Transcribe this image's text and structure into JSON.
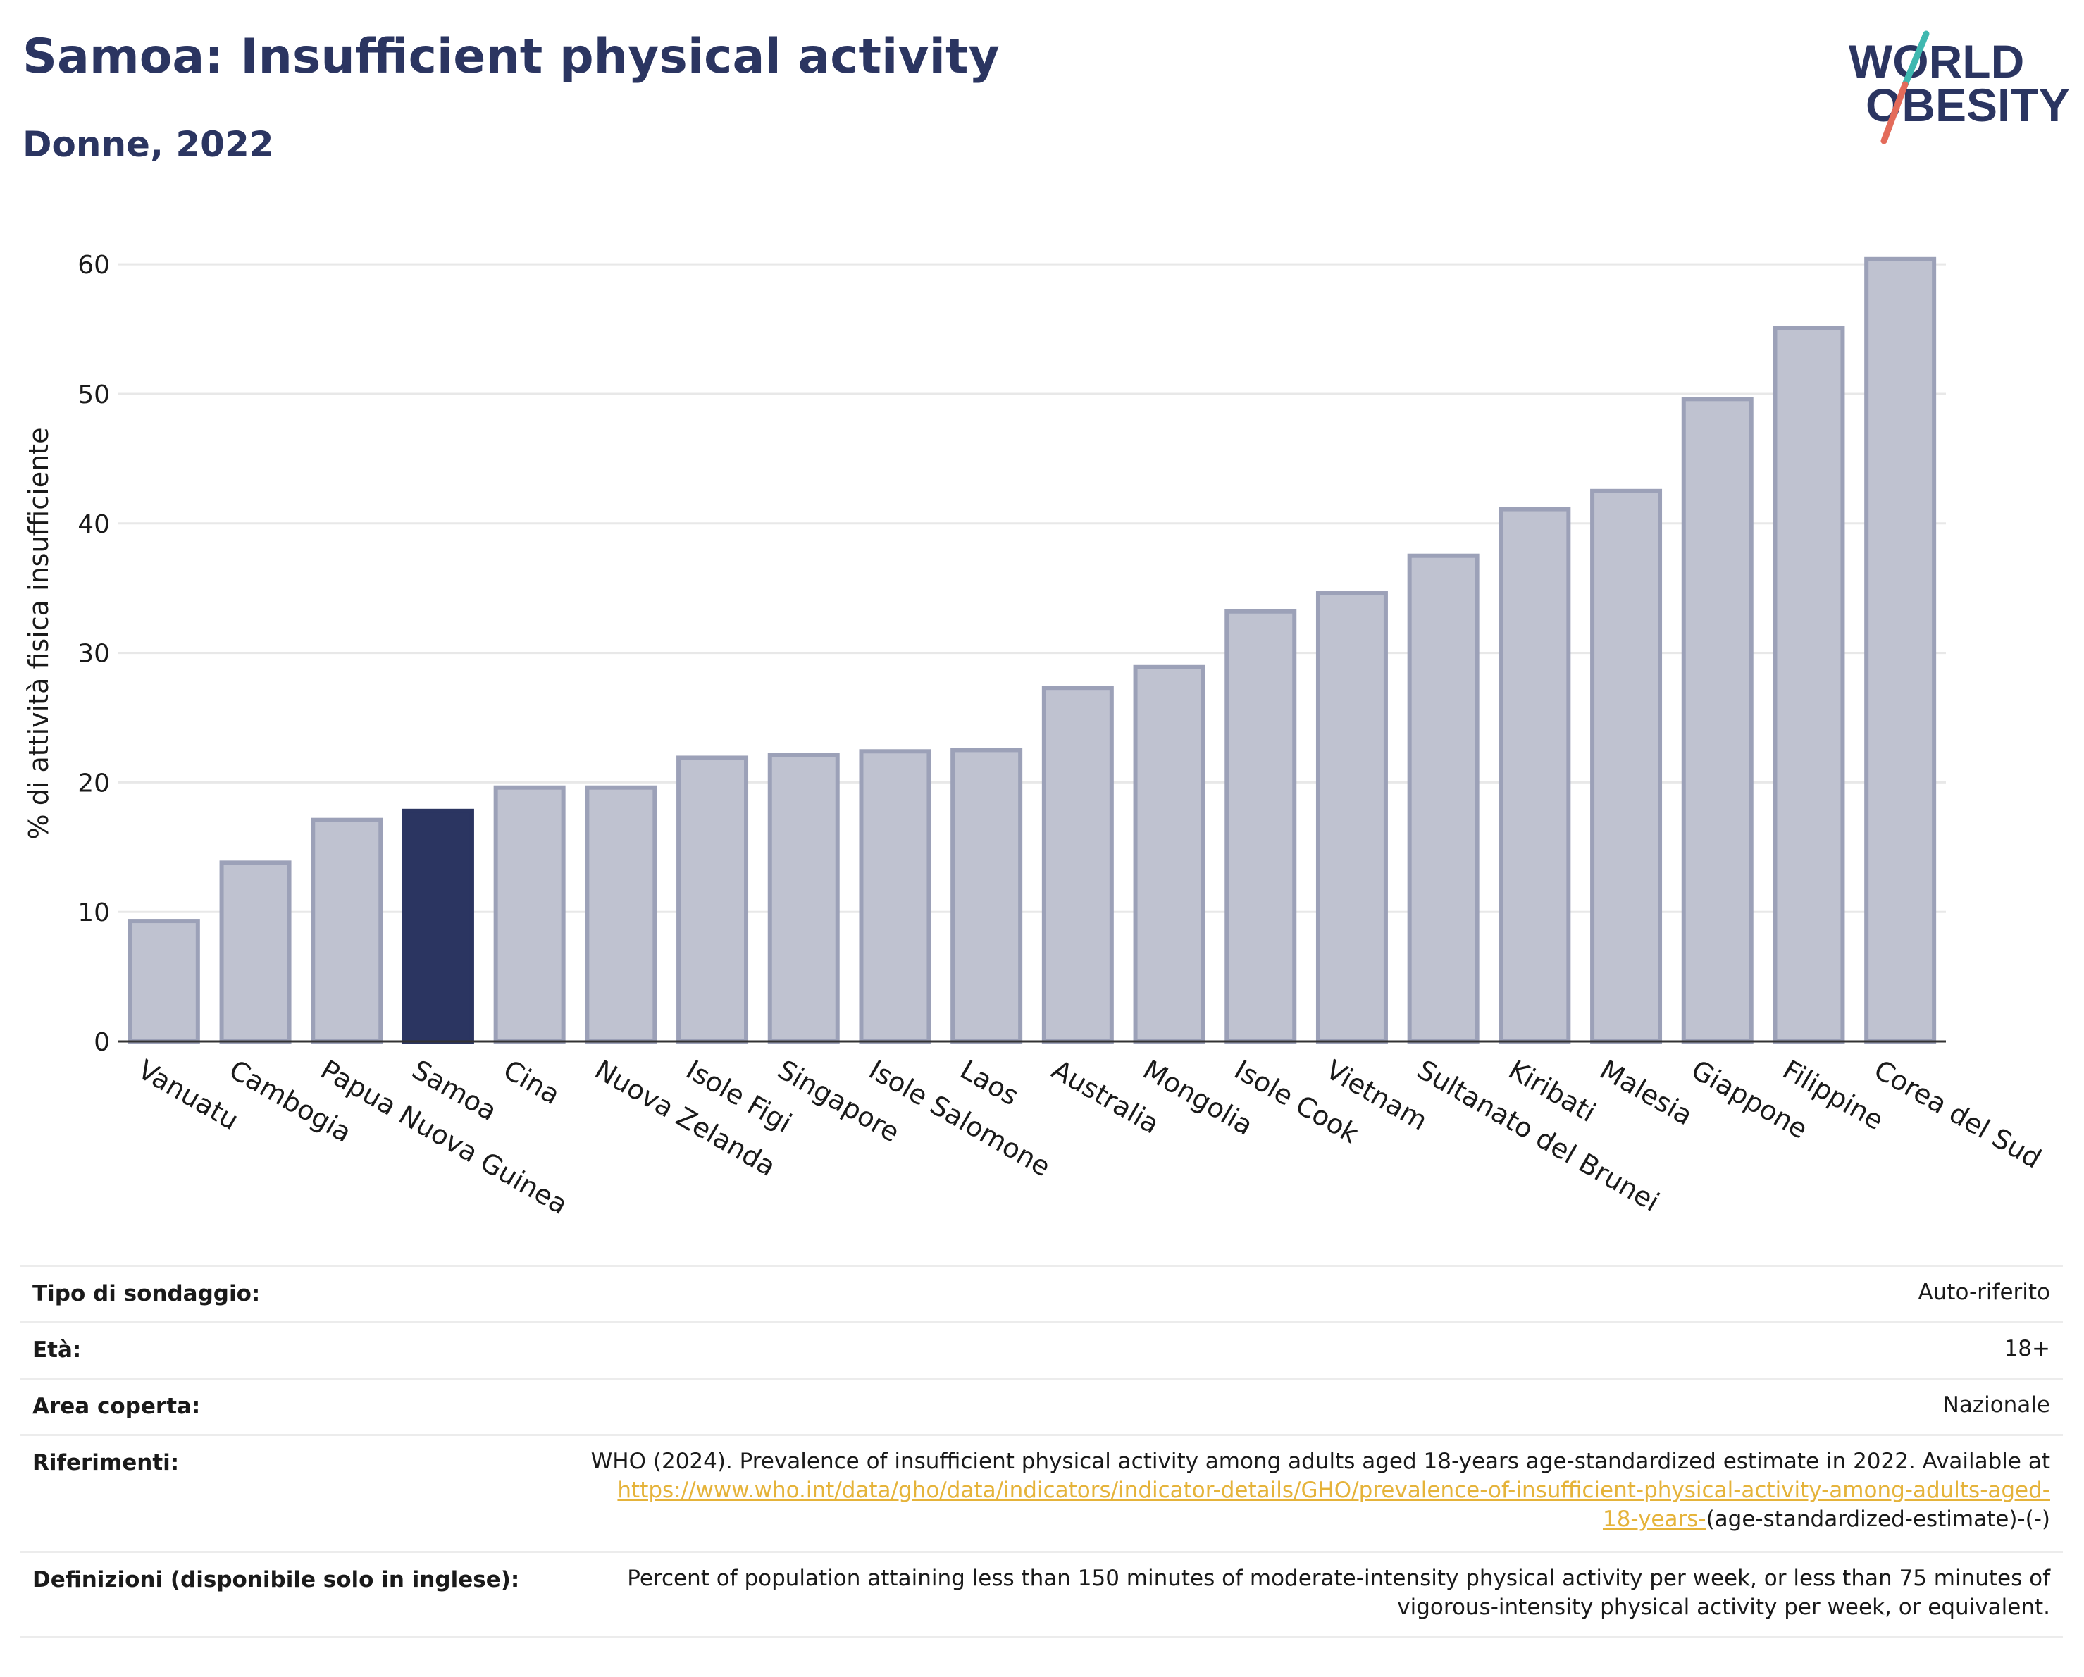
{
  "header": {
    "title": "Samoa: Insufficient physical activity",
    "subtitle": "Donne, 2022"
  },
  "logo": {
    "line1": "WORLD",
    "line2": "OBESITY",
    "text_color": "#2b3561",
    "slash_teal": "#3fb8b0",
    "slash_coral": "#e36b5a"
  },
  "chart_data": {
    "type": "bar",
    "title": "Samoa: Insufficient physical activity",
    "subtitle": "Donne, 2022",
    "ylabel": "% di attività fisica insufficiente",
    "xlabel": "",
    "ylim": [
      0,
      63
    ],
    "yticks": [
      0,
      10,
      20,
      30,
      40,
      50,
      60
    ],
    "grid": true,
    "highlight": "Samoa",
    "colors": {
      "bar": "#bfc2d0",
      "bar_border": "#9ca1b8",
      "highlight": "#2b3561"
    },
    "categories": [
      "Vanuatu",
      "Cambogia",
      "Papua Nuova Guinea",
      "Samoa",
      "Cina",
      "Nuova Zelanda",
      "Isole Figi",
      "Singapore",
      "Isole Salomone",
      "Laos",
      "Australia",
      "Mongolia",
      "Isole Cook",
      "Vietnam",
      "Sultanato del Brunei",
      "Kiribati",
      "Malesia",
      "Giappone",
      "Filippine",
      "Corea del Sud"
    ],
    "values": [
      9.3,
      13.8,
      17.1,
      17.8,
      19.6,
      19.6,
      21.9,
      22.1,
      22.4,
      22.5,
      27.3,
      28.9,
      33.2,
      34.6,
      37.5,
      41.1,
      42.5,
      49.6,
      55.1,
      60.4
    ]
  },
  "info": {
    "rows": [
      {
        "label": "Tipo di sondaggio:",
        "value": "Auto-riferito"
      },
      {
        "label": "Età:",
        "value": "18+"
      },
      {
        "label": "Area coperta:",
        "value": "Nazionale"
      },
      {
        "label": "Riferimenti:",
        "value_pre": "WHO (2024). Prevalence of insufficient physical activity among adults aged 18-years age-standardized estimate in 2022. Available at",
        "link_line1": "https://www.who.int/data/gho/data/indicators/indicator-details/GHO/prevalence-of-insufficient-physical-activity-among-adults-aged-",
        "link_line2": "18-years-",
        "value_post": "(age-standardized-estimate)-(-)"
      },
      {
        "label": "Definizioni (disponibile solo in inglese):",
        "value_line1": "Percent of population attaining less than 150 minutes of moderate-intensity physical activity per week, or less than 75 minutes of",
        "value_line2": "vigorous-intensity physical activity per week, or equivalent."
      }
    ]
  }
}
